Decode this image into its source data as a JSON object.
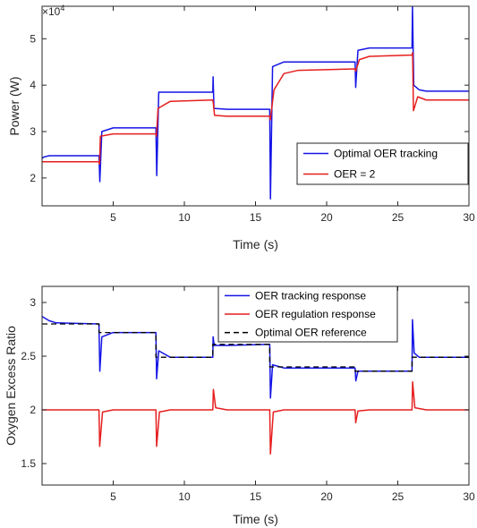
{
  "chart_data": [
    {
      "type": "line",
      "xlabel": "Time (s)",
      "ylabel": "Power (W)",
      "xlim": [
        0,
        30
      ],
      "ylim": [
        1.4,
        5.7
      ],
      "y_multiplier": {
        "base": "×10",
        "exp": "4"
      },
      "x_ticks": [
        5,
        10,
        15,
        20,
        25,
        30
      ],
      "x_tick_labels": [
        "5",
        "10",
        "15",
        "20",
        "25",
        "30"
      ],
      "y_ticks": [
        2,
        3,
        4,
        5
      ],
      "y_tick_labels": [
        "2",
        "3",
        "4",
        "5"
      ],
      "grid": false,
      "legend_position": "lower-right",
      "series": [
        {
          "name": "Optimal OER tracking",
          "color": "#1414e6",
          "points": [
            [
              0,
              2.42
            ],
            [
              0.1,
              2.45
            ],
            [
              0.5,
              2.48
            ],
            [
              1,
              2.48
            ],
            [
              4,
              2.48
            ],
            [
              4.06,
              1.92
            ],
            [
              4.2,
              3.0
            ],
            [
              5,
              3.08
            ],
            [
              8,
              3.08
            ],
            [
              8.06,
              2.05
            ],
            [
              8.2,
              3.85
            ],
            [
              9,
              3.85
            ],
            [
              12,
              3.85
            ],
            [
              12.02,
              4.18
            ],
            [
              12.08,
              3.5
            ],
            [
              13,
              3.48
            ],
            [
              16,
              3.48
            ],
            [
              16.05,
              1.55
            ],
            [
              16.2,
              4.4
            ],
            [
              17,
              4.5
            ],
            [
              22,
              4.5
            ],
            [
              22.04,
              3.95
            ],
            [
              22.2,
              4.75
            ],
            [
              23,
              4.8
            ],
            [
              26,
              4.8
            ],
            [
              26.03,
              5.7
            ],
            [
              26.12,
              4.0
            ],
            [
              26.5,
              3.9
            ],
            [
              27,
              3.87
            ],
            [
              30,
              3.87
            ]
          ]
        },
        {
          "name": "OER = 2",
          "color": "#e61e1e",
          "points": [
            [
              0,
              2.35
            ],
            [
              4,
              2.35
            ],
            [
              4.04,
              2.3
            ],
            [
              4.1,
              2.9
            ],
            [
              5,
              2.95
            ],
            [
              8,
              2.95
            ],
            [
              8.04,
              2.9
            ],
            [
              8.15,
              3.5
            ],
            [
              9,
              3.65
            ],
            [
              12,
              3.68
            ],
            [
              12.04,
              3.6
            ],
            [
              12.12,
              3.35
            ],
            [
              13,
              3.33
            ],
            [
              16,
              3.33
            ],
            [
              16.04,
              3.25
            ],
            [
              16.3,
              3.9
            ],
            [
              17,
              4.25
            ],
            [
              18,
              4.32
            ],
            [
              22,
              4.35
            ],
            [
              22.04,
              4.3
            ],
            [
              22.3,
              4.55
            ],
            [
              23,
              4.62
            ],
            [
              26,
              4.65
            ],
            [
              26.04,
              4.7
            ],
            [
              26.1,
              3.45
            ],
            [
              26.4,
              3.75
            ],
            [
              27,
              3.68
            ],
            [
              30,
              3.68
            ]
          ]
        }
      ]
    },
    {
      "type": "line",
      "xlabel": "Time (s)",
      "ylabel": "Oxygen Excess Ratio",
      "xlim": [
        0,
        30
      ],
      "ylim": [
        1.3,
        3.15
      ],
      "x_ticks": [
        5,
        10,
        15,
        20,
        25,
        30
      ],
      "x_tick_labels": [
        "5",
        "10",
        "15",
        "20",
        "25",
        "30"
      ],
      "y_ticks": [
        1.5,
        2,
        2.5,
        3
      ],
      "y_tick_labels": [
        "1.5",
        "2",
        "2.5",
        "3"
      ],
      "grid": false,
      "legend_position": "top-center",
      "series": [
        {
          "name": "OER tracking response",
          "color": "#1414e6",
          "points": [
            [
              0,
              2.87
            ],
            [
              0.5,
              2.83
            ],
            [
              1,
              2.81
            ],
            [
              4,
              2.8
            ],
            [
              4.06,
              2.36
            ],
            [
              4.2,
              2.68
            ],
            [
              5,
              2.72
            ],
            [
              8,
              2.72
            ],
            [
              8.05,
              2.29
            ],
            [
              8.2,
              2.55
            ],
            [
              9,
              2.49
            ],
            [
              12,
              2.49
            ],
            [
              12.02,
              2.68
            ],
            [
              12.1,
              2.6
            ],
            [
              13,
              2.6
            ],
            [
              16,
              2.61
            ],
            [
              16.05,
              2.11
            ],
            [
              16.2,
              2.42
            ],
            [
              17,
              2.39
            ],
            [
              22,
              2.39
            ],
            [
              22.05,
              2.27
            ],
            [
              22.2,
              2.36
            ],
            [
              23,
              2.36
            ],
            [
              26,
              2.36
            ],
            [
              26.03,
              2.84
            ],
            [
              26.15,
              2.53
            ],
            [
              26.5,
              2.49
            ],
            [
              30,
              2.49
            ]
          ]
        },
        {
          "name": "OER regulation response",
          "color": "#e61e1e",
          "points": [
            [
              0,
              2.0
            ],
            [
              4,
              2.0
            ],
            [
              4.05,
              1.66
            ],
            [
              4.25,
              1.98
            ],
            [
              5,
              2.0
            ],
            [
              8,
              2.0
            ],
            [
              8.05,
              1.66
            ],
            [
              8.25,
              1.98
            ],
            [
              9,
              2.0
            ],
            [
              12,
              2.0
            ],
            [
              12.04,
              2.19
            ],
            [
              12.2,
              2.02
            ],
            [
              13,
              2.0
            ],
            [
              16,
              2.0
            ],
            [
              16.05,
              1.59
            ],
            [
              16.25,
              1.98
            ],
            [
              17,
              2.0
            ],
            [
              22,
              2.0
            ],
            [
              22.04,
              1.88
            ],
            [
              22.2,
              1.99
            ],
            [
              23,
              2.0
            ],
            [
              26,
              2.0
            ],
            [
              26.04,
              2.26
            ],
            [
              26.2,
              2.02
            ],
            [
              27,
              2.0
            ],
            [
              30,
              2.0
            ]
          ]
        },
        {
          "name": "Optimal OER reference",
          "color": "#000000",
          "dashed": true,
          "points": [
            [
              0,
              2.8
            ],
            [
              4,
              2.8
            ],
            [
              4,
              2.72
            ],
            [
              8,
              2.72
            ],
            [
              8,
              2.49
            ],
            [
              12,
              2.49
            ],
            [
              12,
              2.61
            ],
            [
              16,
              2.61
            ],
            [
              16,
              2.4
            ],
            [
              22,
              2.4
            ],
            [
              22,
              2.36
            ],
            [
              26,
              2.36
            ],
            [
              26,
              2.49
            ],
            [
              30,
              2.49
            ]
          ]
        }
      ]
    }
  ]
}
